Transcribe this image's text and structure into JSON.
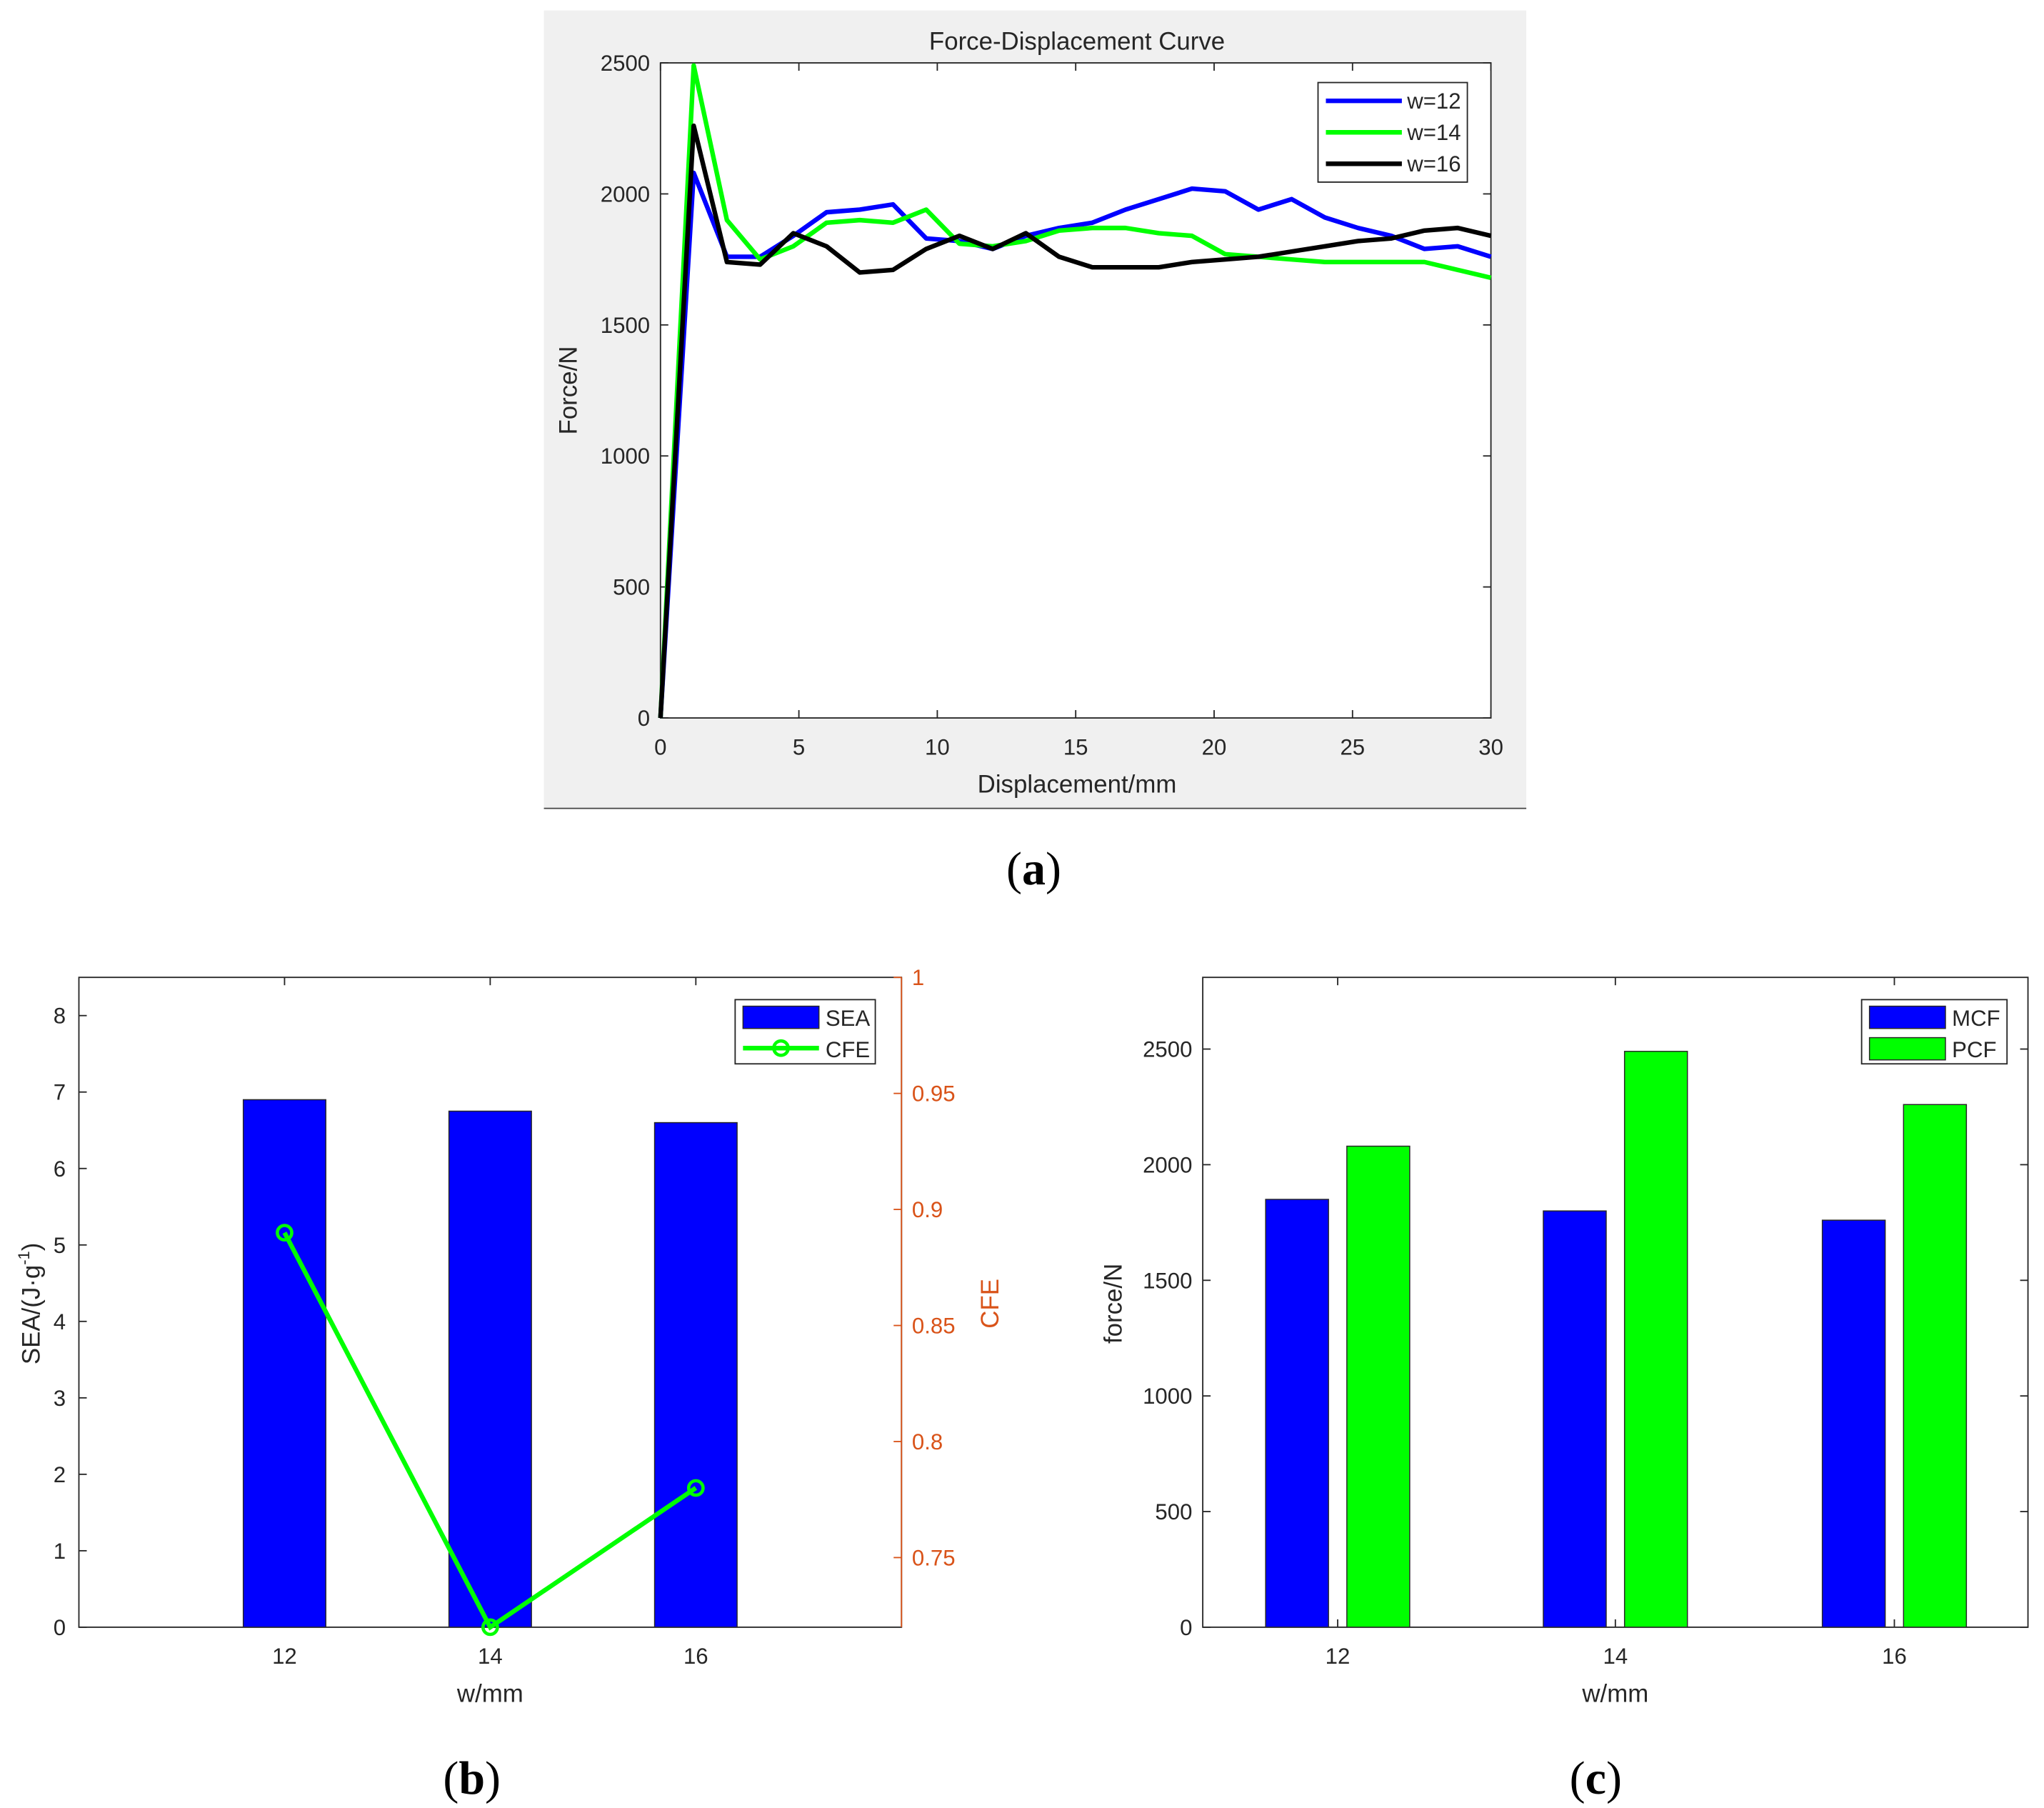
{
  "panel_labels": {
    "a": "a",
    "b": "b",
    "c": "c"
  },
  "colors": {
    "blue": "#0000FF",
    "green": "#00FF00",
    "black": "#000000",
    "orange": "#D95319",
    "panel_bg": "#F0F0F0"
  },
  "chart_data": [
    {
      "id": "a",
      "type": "line",
      "title": "Force-Displacement Curve",
      "xlabel": "Displacement/mm",
      "ylabel": "Force/N",
      "xlim": [
        0,
        30
      ],
      "ylim": [
        0,
        2500
      ],
      "xticks": [
        "0",
        "5",
        "10",
        "15",
        "20",
        "25",
        "30"
      ],
      "yticks": [
        "0",
        "500",
        "1000",
        "1500",
        "2000",
        "2500"
      ],
      "legend_position": "top-right",
      "x": [
        0,
        1.2,
        2.4,
        3.6,
        4.8,
        6,
        7.2,
        8.4,
        9.6,
        10.8,
        12,
        13.2,
        14.4,
        15.6,
        16.8,
        18,
        19.2,
        20.4,
        21.6,
        22.8,
        24,
        25.2,
        26.4,
        27.6,
        28.8,
        30
      ],
      "series": [
        {
          "name": "w=12",
          "color": "#0000FF",
          "values": [
            0,
            2080,
            1760,
            1760,
            1840,
            1930,
            1940,
            1960,
            1830,
            1820,
            1790,
            1840,
            1870,
            1890,
            1940,
            1980,
            2020,
            2010,
            1940,
            1980,
            1910,
            1870,
            1840,
            1790,
            1800,
            1760
          ]
        },
        {
          "name": "w=14",
          "color": "#00FF00",
          "values": [
            0,
            2490,
            1900,
            1750,
            1800,
            1890,
            1900,
            1890,
            1940,
            1810,
            1800,
            1820,
            1860,
            1870,
            1870,
            1850,
            1840,
            1770,
            1760,
            1750,
            1740,
            1740,
            1740,
            1740,
            1710,
            1680
          ]
        },
        {
          "name": "w=16",
          "color": "#000000",
          "values": [
            0,
            2260,
            1740,
            1730,
            1850,
            1800,
            1700,
            1710,
            1790,
            1840,
            1790,
            1850,
            1760,
            1720,
            1720,
            1720,
            1740,
            1750,
            1760,
            1780,
            1800,
            1820,
            1830,
            1860,
            1870,
            1840
          ]
        }
      ]
    },
    {
      "id": "b",
      "type": "bar",
      "xlabel": "w/mm",
      "ylabel": "SEA/(J·g",
      "ylabel_sup": "-1",
      "ylabel_end": ")",
      "y2label": "CFE",
      "categories": [
        "12",
        "14",
        "16"
      ],
      "ylim": [
        0,
        8.5
      ],
      "y2lim": [
        0.72,
        1
      ],
      "yticks": [
        "0",
        "1",
        "2",
        "3",
        "4",
        "5",
        "6",
        "7",
        "8"
      ],
      "y2ticks": [
        "0.75",
        "0.8",
        "0.85",
        "0.9",
        "0.95",
        "1"
      ],
      "legend_position": "top-right",
      "series": [
        {
          "name": "SEA",
          "type": "bar",
          "axis": "left",
          "color": "#0000FF",
          "values": [
            6.9,
            6.75,
            6.6
          ]
        },
        {
          "name": "CFE",
          "type": "line",
          "axis": "right",
          "color": "#00FF00",
          "values": [
            0.89,
            0.72,
            0.78
          ]
        }
      ]
    },
    {
      "id": "c",
      "type": "bar",
      "xlabel": "w/mm",
      "ylabel": "force/N",
      "categories": [
        "12",
        "14",
        "16"
      ],
      "ylim": [
        0,
        2810
      ],
      "yticks": [
        "0",
        "500",
        "1000",
        "1500",
        "2000",
        "2500"
      ],
      "legend_position": "top-right",
      "series": [
        {
          "name": "MCF",
          "color": "#0000FF",
          "values": [
            1850,
            1800,
            1760
          ]
        },
        {
          "name": "PCF",
          "color": "#00FF00",
          "values": [
            2080,
            2490,
            2260
          ]
        }
      ]
    }
  ]
}
